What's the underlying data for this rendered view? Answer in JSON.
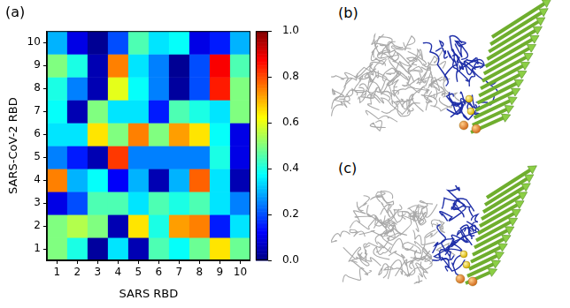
{
  "chart_data": {
    "type": "heatmap",
    "panel": "(a)",
    "x_label": "SARS RBD",
    "y_label": "SARS-CoV-2 RBD",
    "x": [
      1,
      2,
      3,
      4,
      5,
      6,
      7,
      8,
      9,
      10
    ],
    "y": [
      1,
      2,
      3,
      4,
      5,
      6,
      7,
      8,
      9,
      10
    ],
    "xlim": [
      0.5,
      10.5
    ],
    "ylim": [
      0.5,
      10.5
    ],
    "xticks": [
      1,
      2,
      3,
      4,
      5,
      6,
      7,
      8,
      9,
      10
    ],
    "yticks": [
      1,
      2,
      3,
      4,
      5,
      6,
      7,
      8,
      9,
      10
    ],
    "cells": [
      [
        0.5,
        0.4,
        0.03,
        0.35,
        0.05,
        0.45,
        0.38,
        0.48,
        0.65,
        0.48
      ],
      [
        0.5,
        0.55,
        0.5,
        0.05,
        0.65,
        0.4,
        0.72,
        0.75,
        0.15,
        0.35
      ],
      [
        0.1,
        0.2,
        0.45,
        0.45,
        0.35,
        0.45,
        0.4,
        0.45,
        0.35,
        0.25
      ],
      [
        0.75,
        0.3,
        0.38,
        0.12,
        0.3,
        0.05,
        0.3,
        0.78,
        0.35,
        0.05
      ],
      [
        0.25,
        0.15,
        0.05,
        0.82,
        0.25,
        0.25,
        0.25,
        0.25,
        0.4,
        0.1
      ],
      [
        0.35,
        0.35,
        0.65,
        0.5,
        0.75,
        0.5,
        0.72,
        0.65,
        0.38,
        0.1
      ],
      [
        0.38,
        0.05,
        0.5,
        0.35,
        0.35,
        0.15,
        0.45,
        0.4,
        0.35,
        0.5
      ],
      [
        0.4,
        0.25,
        0.05,
        0.6,
        0.38,
        0.25,
        0.03,
        0.2,
        0.85,
        0.5
      ],
      [
        0.5,
        0.4,
        0.05,
        0.75,
        0.35,
        0.25,
        0.02,
        0.2,
        0.88,
        0.45
      ],
      [
        0.3,
        0.1,
        0.02,
        0.2,
        0.45,
        0.35,
        0.38,
        0.1,
        0.15,
        0.3
      ]
    ],
    "colorbar_range": [
      0,
      1
    ],
    "colorbar_ticks": [
      {
        "value": 0,
        "label": "0.0"
      },
      {
        "value": 0.2,
        "label": "0.2"
      },
      {
        "value": 0.4,
        "label": "0.4"
      },
      {
        "value": 0.6,
        "label": "0.6"
      },
      {
        "value": 0.8,
        "label": "0.8"
      },
      {
        "value": 1,
        "label": "1.0"
      }
    ]
  },
  "panels": [
    {
      "panel": "(b)"
    },
    {
      "panel": "(c)"
    }
  ]
}
